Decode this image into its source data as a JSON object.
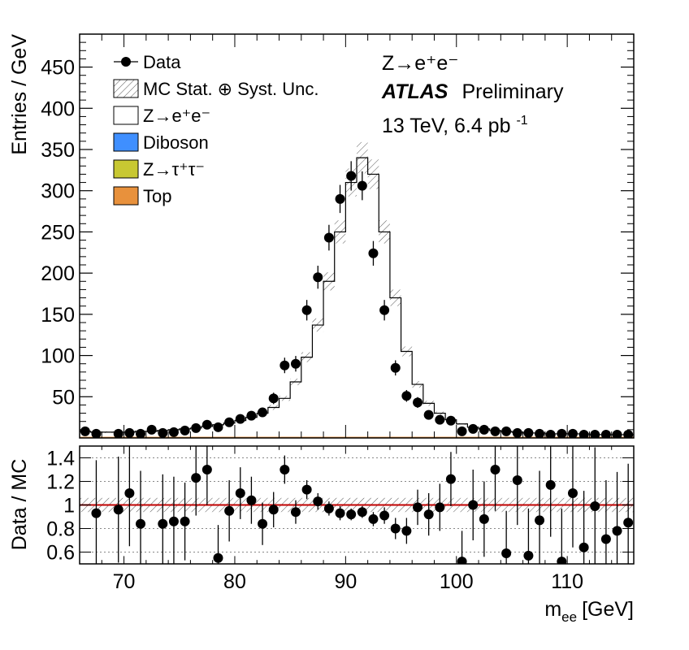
{
  "chart_data": [
    {
      "type": "histogram",
      "ylabel": "Entries / GeV",
      "xlim": [
        66,
        116
      ],
      "ylim": [
        0,
        490
      ],
      "y_ticks": [
        50,
        100,
        150,
        200,
        250,
        300,
        350,
        400,
        450
      ],
      "bin_edges": [
        66,
        67,
        68,
        69,
        70,
        71,
        72,
        73,
        74,
        75,
        76,
        77,
        78,
        79,
        80,
        81,
        82,
        83,
        84,
        85,
        86,
        87,
        88,
        89,
        90,
        91,
        92,
        93,
        94,
        95,
        96,
        97,
        98,
        99,
        100,
        101,
        102,
        103,
        104,
        105,
        106,
        107,
        108,
        109,
        110,
        111,
        112,
        113,
        114,
        115,
        116
      ],
      "mc_total": [
        8,
        7,
        7,
        7,
        7,
        8,
        8,
        9,
        10,
        11,
        12,
        14,
        16,
        18,
        21,
        25,
        30,
        37,
        48,
        68,
        98,
        137,
        190,
        250,
        310,
        340,
        320,
        250,
        170,
        105,
        65,
        42,
        30,
        22,
        17,
        13,
        11,
        9,
        8,
        7,
        6,
        6,
        5,
        5,
        5,
        5,
        4,
        4,
        4,
        4
      ],
      "mc_unc_abs": [
        1,
        1,
        1,
        1,
        1,
        1,
        1,
        1,
        1,
        1,
        1,
        1,
        1,
        1,
        2,
        2,
        2,
        3,
        3,
        4,
        6,
        8,
        11,
        14,
        17,
        19,
        18,
        14,
        10,
        6,
        4,
        3,
        2,
        2,
        1,
        1,
        1,
        1,
        1,
        1,
        1,
        1,
        1,
        1,
        1,
        1,
        1,
        1,
        1,
        1
      ],
      "data_points": [
        {
          "x": 66.5,
          "y": 8
        },
        {
          "x": 67.5,
          "y": 5
        },
        {
          "x": 69.5,
          "y": 5
        },
        {
          "x": 70.5,
          "y": 6
        },
        {
          "x": 71.5,
          "y": 5
        },
        {
          "x": 72.5,
          "y": 10
        },
        {
          "x": 73.5,
          "y": 6
        },
        {
          "x": 74.5,
          "y": 7
        },
        {
          "x": 75.5,
          "y": 9
        },
        {
          "x": 76.5,
          "y": 12
        },
        {
          "x": 77.5,
          "y": 16
        },
        {
          "x": 78.5,
          "y": 13
        },
        {
          "x": 79.5,
          "y": 19
        },
        {
          "x": 80.5,
          "y": 23
        },
        {
          "x": 81.5,
          "y": 27
        },
        {
          "x": 82.5,
          "y": 31
        },
        {
          "x": 83.5,
          "y": 48
        },
        {
          "x": 84.5,
          "y": 88
        },
        {
          "x": 85.5,
          "y": 90
        },
        {
          "x": 86.5,
          "y": 155
        },
        {
          "x": 87.5,
          "y": 195
        },
        {
          "x": 88.5,
          "y": 243
        },
        {
          "x": 89.5,
          "y": 290
        },
        {
          "x": 90.5,
          "y": 318
        },
        {
          "x": 91.5,
          "y": 306
        },
        {
          "x": 92.5,
          "y": 224
        },
        {
          "x": 93.5,
          "y": 155
        },
        {
          "x": 94.5,
          "y": 85
        },
        {
          "x": 95.5,
          "y": 51
        },
        {
          "x": 96.5,
          "y": 43
        },
        {
          "x": 97.5,
          "y": 28
        },
        {
          "x": 98.5,
          "y": 22
        },
        {
          "x": 99.5,
          "y": 21
        },
        {
          "x": 100.5,
          "y": 8
        },
        {
          "x": 101.5,
          "y": 11
        },
        {
          "x": 102.5,
          "y": 10
        },
        {
          "x": 103.5,
          "y": 8
        },
        {
          "x": 104.5,
          "y": 8
        },
        {
          "x": 105.5,
          "y": 6
        },
        {
          "x": 106.5,
          "y": 6
        },
        {
          "x": 107.5,
          "y": 5
        },
        {
          "x": 108.5,
          "y": 4
        },
        {
          "x": 109.5,
          "y": 5
        },
        {
          "x": 110.5,
          "y": 5
        },
        {
          "x": 111.5,
          "y": 4
        },
        {
          "x": 112.5,
          "y": 4
        },
        {
          "x": 113.5,
          "y": 4
        },
        {
          "x": 114.5,
          "y": 4
        },
        {
          "x": 115.5,
          "y": 4
        }
      ],
      "legend": [
        {
          "label": "Data",
          "style": "marker"
        },
        {
          "label": "MC Stat. ⊕ Syst. Unc.",
          "style": "hatch"
        },
        {
          "label": "Z→e⁺e⁻",
          "style": "box",
          "color": "#ffffff"
        },
        {
          "label": "Diboson",
          "style": "box",
          "color": "#3f8fff"
        },
        {
          "label": "Z→τ⁺τ⁻",
          "style": "box",
          "color": "#c8c832"
        },
        {
          "label": "Top",
          "style": "box",
          "color": "#e8913c"
        }
      ],
      "legend_position": "top-left",
      "annotations": {
        "process": "Z→e⁺e⁻",
        "experiment": "ATLAS",
        "status": "Preliminary",
        "energy": "13 TeV, 6.4 pb",
        "lumi_unit_exp": "-1"
      }
    },
    {
      "type": "scatter",
      "ylabel": "Data / MC",
      "xlabel": "m",
      "xlabel_subscript": "ee",
      "xlabel_unit": "[GeV]",
      "xlim": [
        66,
        116
      ],
      "ylim": [
        0.5,
        1.5
      ],
      "y_ticks": [
        0.6,
        0.8,
        1,
        1.2,
        1.4
      ],
      "y_tick_labels": [
        "0.6",
        "0.8",
        "1",
        "1.2",
        "1.4"
      ],
      "x_ticks": [
        70,
        80,
        90,
        100,
        110
      ],
      "x_tick_labels": [
        "70",
        "80",
        "90",
        "100",
        "110"
      ],
      "grid_y": [
        0.6,
        0.8,
        1.2,
        1.4
      ],
      "reference_line": 1,
      "reference_color": "#c00000",
      "mc_band_rel": 0.06,
      "points": [
        {
          "x": 67.5,
          "y": 0.93,
          "err": 0.45
        },
        {
          "x": 69.5,
          "y": 0.96,
          "err": 0.45
        },
        {
          "x": 70.5,
          "y": 1.1,
          "err": 0.45
        },
        {
          "x": 71.5,
          "y": 0.84,
          "err": 0.45
        },
        {
          "x": 73.5,
          "y": 0.84,
          "err": 0.42
        },
        {
          "x": 74.5,
          "y": 0.86,
          "err": 0.38
        },
        {
          "x": 75.5,
          "y": 0.86,
          "err": 0.33
        },
        {
          "x": 76.5,
          "y": 1.23,
          "err": 0.32
        },
        {
          "x": 77.5,
          "y": 1.3,
          "err": 0.3
        },
        {
          "x": 78.5,
          "y": 0.55,
          "err": 0.28
        },
        {
          "x": 79.5,
          "y": 0.95,
          "err": 0.26
        },
        {
          "x": 80.5,
          "y": 1.1,
          "err": 0.22
        },
        {
          "x": 81.5,
          "y": 1.04,
          "err": 0.2
        },
        {
          "x": 82.5,
          "y": 0.84,
          "err": 0.18
        },
        {
          "x": 83.5,
          "y": 0.96,
          "err": 0.15
        },
        {
          "x": 84.5,
          "y": 1.3,
          "err": 0.12
        },
        {
          "x": 85.5,
          "y": 0.94,
          "err": 0.1
        },
        {
          "x": 86.5,
          "y": 1.13,
          "err": 0.08
        },
        {
          "x": 87.5,
          "y": 1.03,
          "err": 0.07
        },
        {
          "x": 88.5,
          "y": 0.97,
          "err": 0.06
        },
        {
          "x": 89.5,
          "y": 0.93,
          "err": 0.06
        },
        {
          "x": 90.5,
          "y": 0.92,
          "err": 0.05
        },
        {
          "x": 91.5,
          "y": 0.94,
          "err": 0.05
        },
        {
          "x": 92.5,
          "y": 0.88,
          "err": 0.06
        },
        {
          "x": 93.5,
          "y": 0.91,
          "err": 0.07
        },
        {
          "x": 94.5,
          "y": 0.8,
          "err": 0.09
        },
        {
          "x": 95.5,
          "y": 0.78,
          "err": 0.11
        },
        {
          "x": 96.5,
          "y": 0.98,
          "err": 0.15
        },
        {
          "x": 97.5,
          "y": 0.92,
          "err": 0.18
        },
        {
          "x": 98.5,
          "y": 0.98,
          "err": 0.2
        },
        {
          "x": 99.5,
          "y": 1.22,
          "err": 0.23
        },
        {
          "x": 100.5,
          "y": 0.52,
          "err": 0.26
        },
        {
          "x": 101.5,
          "y": 1.0,
          "err": 0.3
        },
        {
          "x": 102.5,
          "y": 0.88,
          "err": 0.32
        },
        {
          "x": 103.5,
          "y": 1.3,
          "err": 0.35
        },
        {
          "x": 104.5,
          "y": 0.59,
          "err": 0.36
        },
        {
          "x": 105.5,
          "y": 1.21,
          "err": 0.38
        },
        {
          "x": 106.5,
          "y": 0.57,
          "err": 0.4
        },
        {
          "x": 107.5,
          "y": 0.87,
          "err": 0.42
        },
        {
          "x": 108.5,
          "y": 1.17,
          "err": 0.44
        },
        {
          "x": 109.5,
          "y": 0.52,
          "err": 0.45
        },
        {
          "x": 110.5,
          "y": 1.1,
          "err": 0.46
        },
        {
          "x": 111.5,
          "y": 0.64,
          "err": 0.48
        },
        {
          "x": 112.5,
          "y": 0.99,
          "err": 0.5
        },
        {
          "x": 113.5,
          "y": 0.71,
          "err": 0.5
        },
        {
          "x": 114.5,
          "y": 0.78,
          "err": 0.5
        },
        {
          "x": 115.5,
          "y": 0.85,
          "err": 0.5
        }
      ]
    }
  ]
}
